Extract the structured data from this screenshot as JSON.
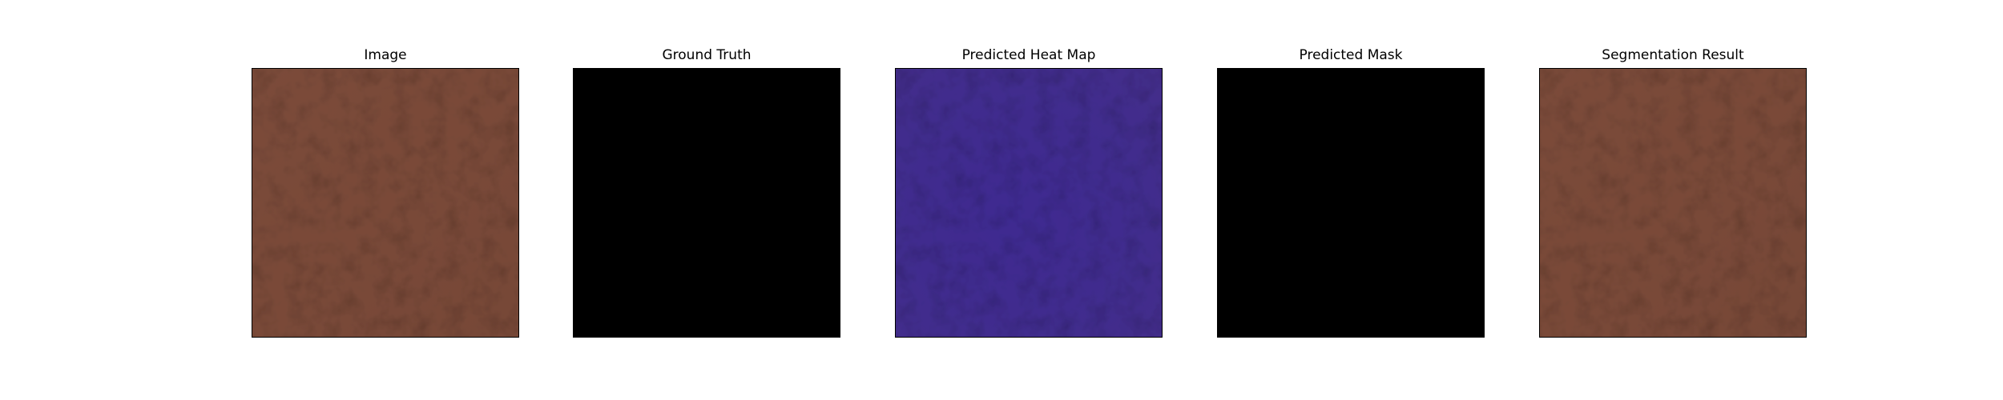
{
  "figure": {
    "background": "#ffffff",
    "panels": [
      {
        "title": "Image",
        "content": "leather-texture",
        "base_color": "#7d4c3b"
      },
      {
        "title": "Ground Truth",
        "content": "black-mask",
        "base_color": "#000000"
      },
      {
        "title": "Predicted Heat Map",
        "content": "heatmap-overlay",
        "base_color": "#3f2b8f"
      },
      {
        "title": "Predicted Mask",
        "content": "black-mask",
        "base_color": "#000000"
      },
      {
        "title": "Segmentation Result",
        "content": "leather-texture",
        "base_color": "#7d4c3b"
      }
    ]
  }
}
